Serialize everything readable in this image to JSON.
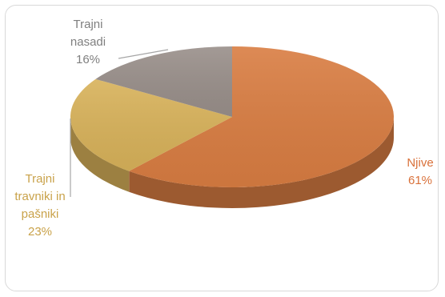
{
  "chart_data": {
    "type": "pie",
    "title": "",
    "categories": [
      "Njive",
      "Trajni travniki in pašniki",
      "Trajni nasadi"
    ],
    "values": [
      61,
      23,
      16
    ],
    "value_labels": [
      "61%",
      "23%",
      "16%"
    ],
    "label_lines": [
      [
        "Njive",
        "61%"
      ],
      [
        "Trajni",
        "travniki in",
        "pašniki",
        "23%"
      ],
      [
        "Trajni",
        "nasadi",
        "16%"
      ]
    ],
    "colors": {
      "Njive": "#d97d42",
      "Trajni travniki in pašniki": "#d8b25a",
      "Trajni nasadi": "#998f8a"
    },
    "label_colors": {
      "Njive": "#d9713a",
      "Trajni travniki in pašniki": "#c9a24a",
      "Trajni nasadi": "#7f7f7f"
    },
    "style": "3d",
    "legend": "none"
  }
}
